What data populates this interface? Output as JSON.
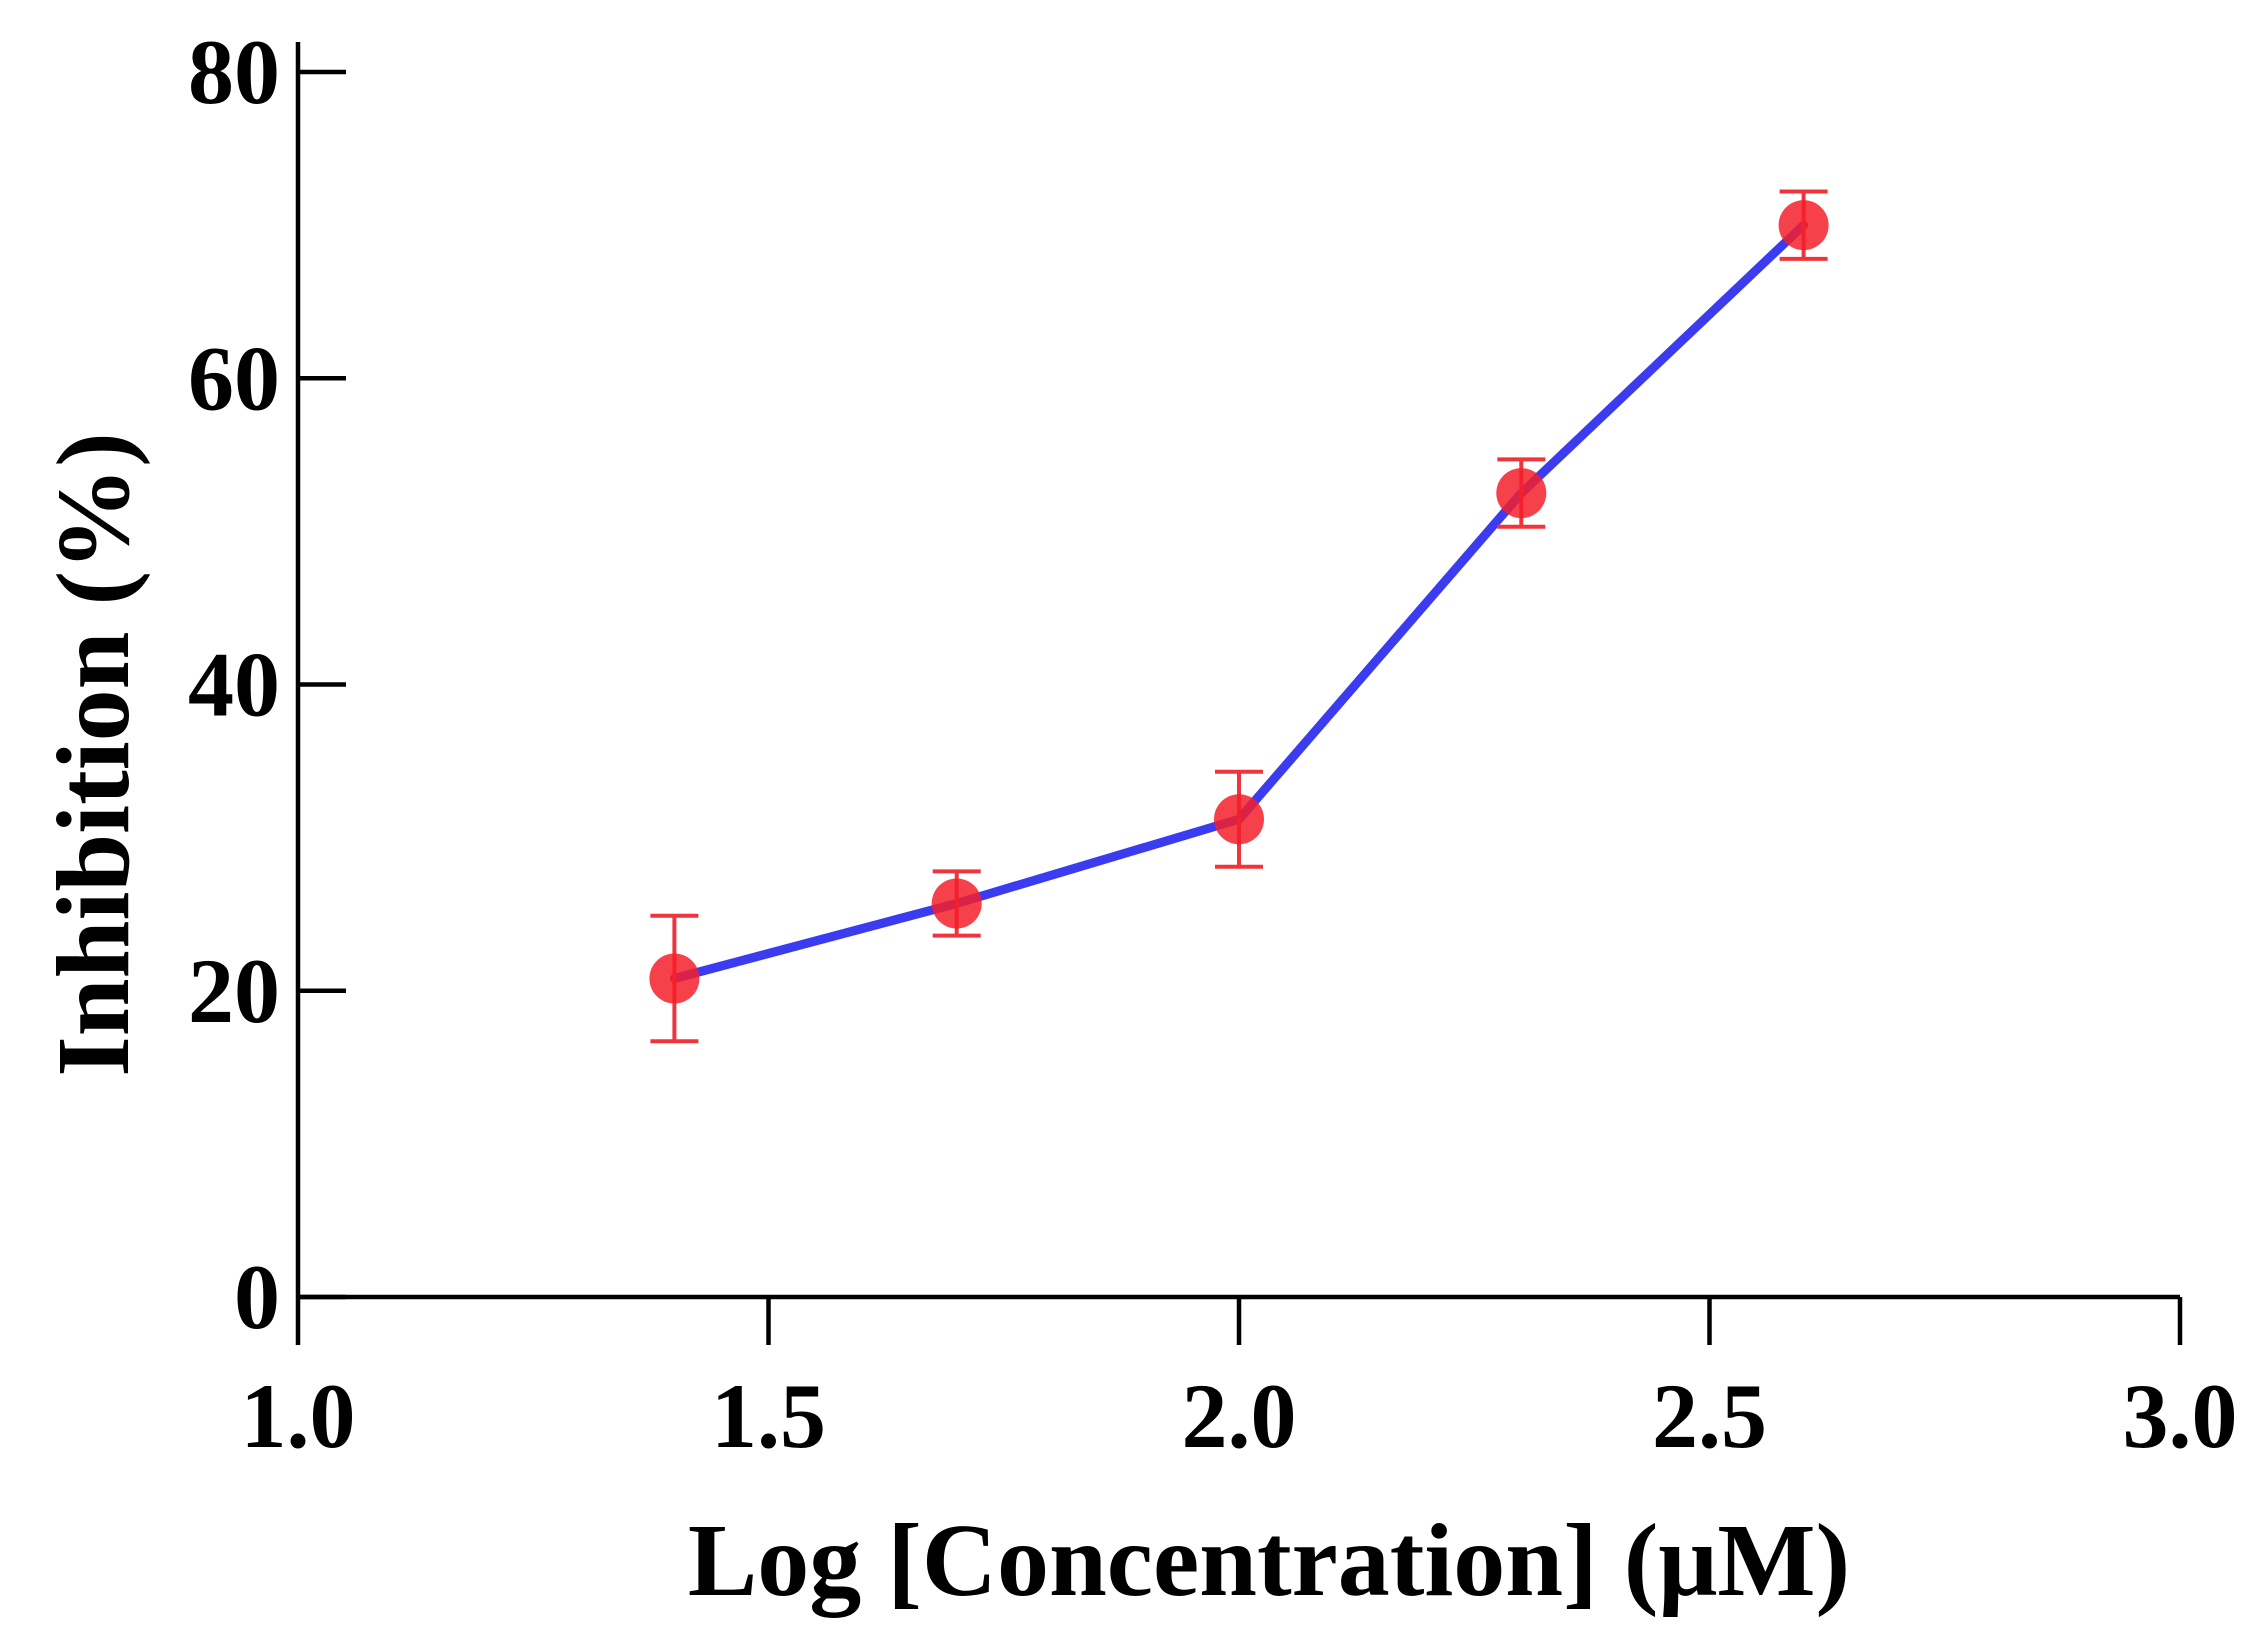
{
  "chart_data": {
    "type": "line",
    "title": "",
    "xlabel": "Log [Concentration] (μM)",
    "ylabel": "Inhibition (%)",
    "xlim": [
      1.0,
      3.0
    ],
    "ylim": [
      0,
      80
    ],
    "xticks": [
      1.0,
      1.5,
      2.0,
      2.5,
      3.0
    ],
    "xtick_labels": [
      "1.0",
      "1.5",
      "2.0",
      "2.5",
      "3.0"
    ],
    "yticks": [
      0,
      20,
      40,
      60,
      80
    ],
    "ytick_labels": [
      "0",
      "20",
      "40",
      "60",
      "80"
    ],
    "grid": false,
    "legend": "none",
    "series": [
      {
        "name": "Inhibition",
        "x": [
          1.4,
          1.7,
          2.0,
          2.3,
          2.6
        ],
        "y": [
          20.8,
          25.7,
          31.2,
          52.5,
          70.0
        ],
        "error": [
          4.1,
          2.1,
          3.1,
          2.2,
          2.2
        ],
        "line_color": "#3b3bf0",
        "marker_color": "#f51f2a",
        "error_color": "#f0343c"
      }
    ]
  }
}
